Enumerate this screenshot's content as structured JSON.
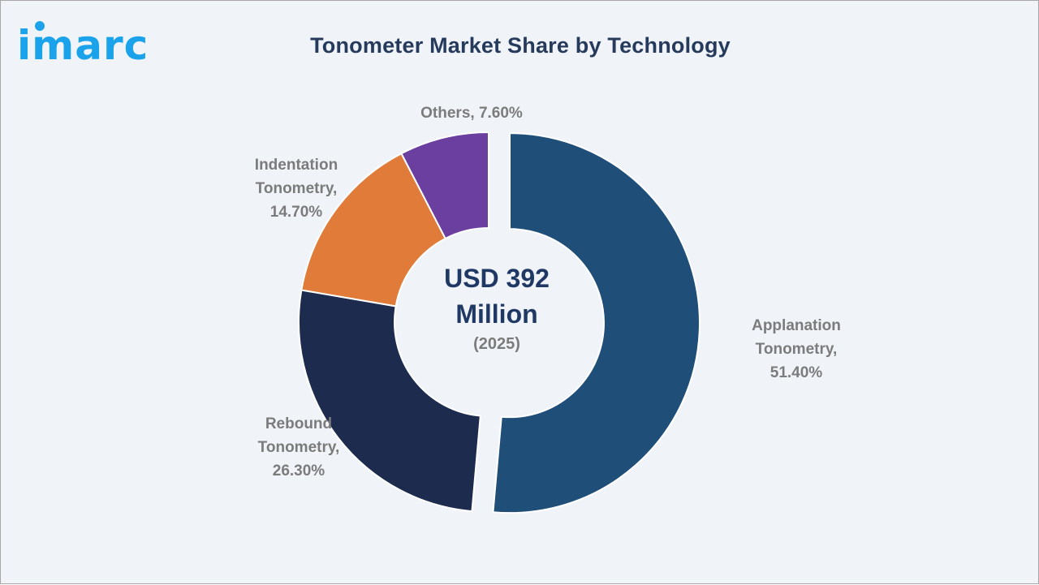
{
  "brand": {
    "logo_text": "imarc",
    "logo_color": "#1aa3ea"
  },
  "title": "Tonometer Market Share by Technology",
  "center": {
    "value_line1": "USD 392",
    "value_line2": "Million",
    "year": "(2025)"
  },
  "labels": {
    "applanation": {
      "line1": "Applanation",
      "line2": "Tonometry,",
      "line3": "51.40%"
    },
    "rebound": {
      "line1": "Rebound",
      "line2": "Tonometry,",
      "line3": "26.30%"
    },
    "indentation": {
      "line1": "Indentation",
      "line2": "Tonometry,",
      "line3": "14.70%"
    },
    "others": {
      "line1": "Others, 7.60%"
    }
  },
  "colors": {
    "background": "#f0f4f9",
    "title": "#263a5c",
    "label": "#7b7b7b",
    "center_value": "#1f3864"
  },
  "chart_data": {
    "type": "pie",
    "variant": "donut",
    "title": "Tonometer Market Share by Technology",
    "categories": [
      "Applanation Tonometry",
      "Rebound Tonometry",
      "Indentation Tonometry",
      "Others"
    ],
    "values": [
      51.4,
      26.3,
      14.7,
      7.6
    ],
    "unit": "%",
    "colors": [
      "#1f4e79",
      "#1c2b4e",
      "#e07b39",
      "#6b3fa0"
    ],
    "exploded": [
      "Applanation Tonometry"
    ],
    "start_angle_deg": 0,
    "direction": "clockwise",
    "center_text": "USD 392 Million (2025)",
    "legend": "none (data labels outside slices)"
  }
}
